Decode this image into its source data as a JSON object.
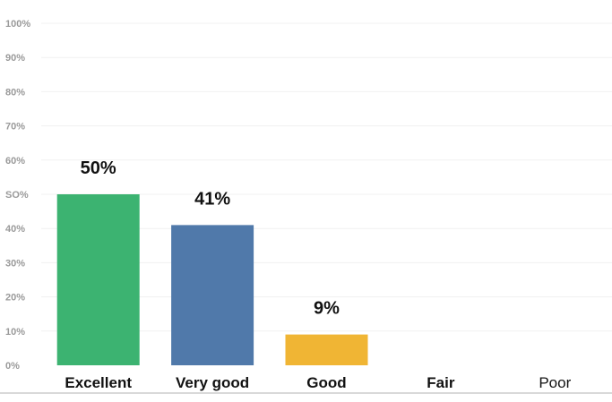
{
  "chart_data": {
    "type": "bar",
    "title": "",
    "xlabel": "",
    "ylabel": "",
    "ylim": [
      0,
      100
    ],
    "ytick_labels": [
      "0%",
      "10%",
      "20%",
      "30%",
      "40%",
      "SO%",
      "60%",
      "70%",
      "80%",
      "90%",
      "100%"
    ],
    "categories": [
      "Excellent",
      "Very good",
      "Good",
      "Fair",
      "Poor"
    ],
    "values": [
      50,
      41,
      9,
      0,
      0
    ],
    "value_labels": [
      "50%",
      "41%",
      "9%",
      "",
      ""
    ],
    "category_bold": [
      true,
      true,
      true,
      true,
      false
    ],
    "colors": [
      "#3cb371",
      "#5079aa",
      "#f0b534",
      "#cccccc",
      "#cccccc"
    ],
    "grid": true,
    "grid_color": "#f1f1f1",
    "axis_color": "#d9d9d9"
  }
}
